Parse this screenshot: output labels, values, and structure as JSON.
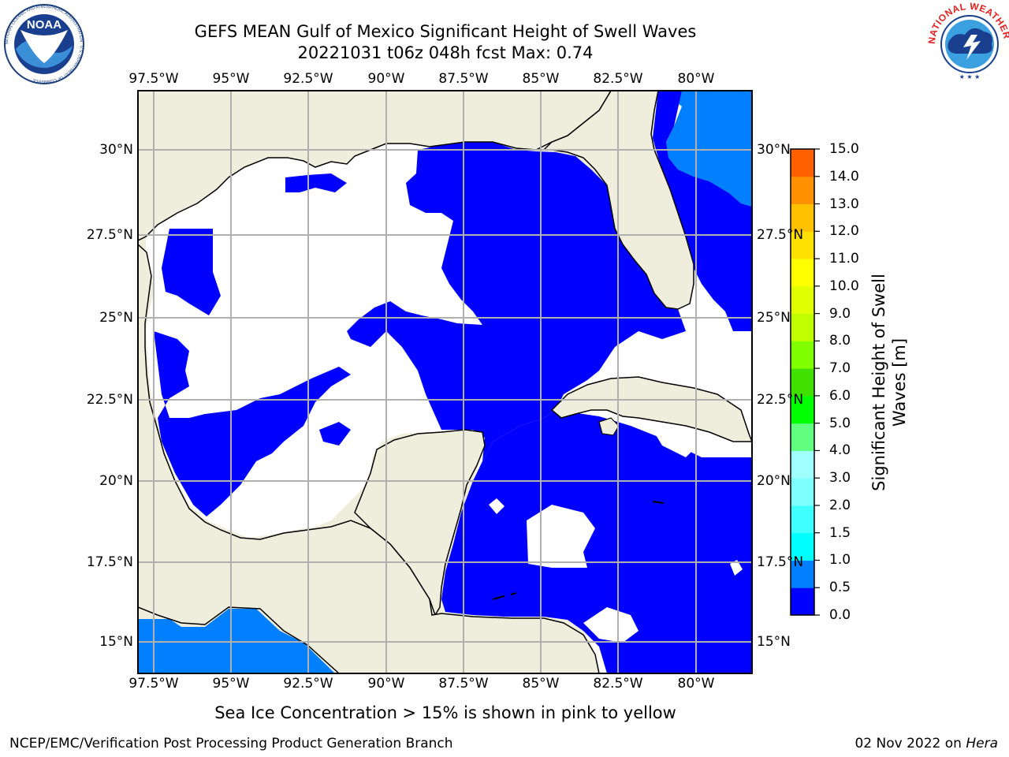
{
  "header": {
    "title_line1": "GEFS MEAN Gulf of Mexico Significant Height of Swell Waves",
    "title_line2": "20221031 t06z 048h fcst   Max: 0.74"
  },
  "logos": {
    "noaa_text": "NOAA",
    "noaa_ring_text": "NATIONAL OCEANIC AND ATMOSPHERIC ADMINISTRATION · U.S. DEPARTMENT OF COMMERCE",
    "nws_ring_text": "NATIONAL WEATHER SERVICE"
  },
  "map": {
    "lon_labels": [
      "97.5°W",
      "95°W",
      "92.5°W",
      "90°W",
      "87.5°W",
      "85°W",
      "82.5°W",
      "80°W"
    ],
    "lat_labels": [
      "30°N",
      "27.5°N",
      "25°N",
      "22.5°N",
      "20°N",
      "17.5°N",
      "15°N"
    ],
    "colors": {
      "land": "#efeddc",
      "swell_0_05": "#0000ff",
      "swell_05_10": "#0080ff",
      "no_data": "#ffffff",
      "grid": "#b0b0b0",
      "coast": "#000000"
    }
  },
  "colorbar": {
    "title_line1": "Significant Height of Swell",
    "title_line2": "Waves [m]",
    "ticks": [
      "0.0",
      "0.5",
      "1.0",
      "1.5",
      "2.0",
      "3.0",
      "4.0",
      "5.0",
      "6.0",
      "7.0",
      "8.0",
      "9.0",
      "10.0",
      "11.0",
      "12.0",
      "13.0",
      "14.0",
      "15.0"
    ],
    "colors": [
      "#0000ff",
      "#0080ff",
      "#00ffff",
      "#40ffff",
      "#80ffff",
      "#a0ffff",
      "#60ff80",
      "#00ff00",
      "#40e000",
      "#80ff00",
      "#c0ff00",
      "#e0ff00",
      "#ffff00",
      "#ffe000",
      "#ffc000",
      "#ff9000",
      "#ff6000",
      "#ff3000",
      "#ff0000"
    ]
  },
  "footnote": "Sea Ice Concentration > 15% is shown in pink to yellow",
  "footer": {
    "left": "NCEP/EMC/Verification Post Processing Product Generation Branch",
    "right_date": "02 Nov 2022 on ",
    "right_host": "Hera"
  }
}
